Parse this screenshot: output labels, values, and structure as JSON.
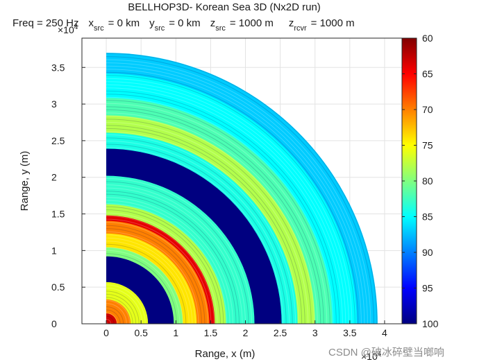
{
  "chart_data": {
    "type": "heatmap",
    "title": "BELLHOP3D- Korean Sea 3D (Nx2D run)",
    "subtitle": {
      "freq": "Freq = 250 Hz",
      "xsrc": "x",
      "xsrc_sub": "src",
      "xsrc_val": "= 0 km",
      "ysrc": "y",
      "ysrc_sub": "src",
      "ysrc_val": "= 0 km",
      "zsrc": "z",
      "zsrc_sub": "src",
      "zsrc_val": "= 1000 m",
      "zrcvr": "z",
      "zrcvr_sub": "rcvr",
      "zrcvr_val": "= 1000 m"
    },
    "xlabel": "Range, x (m)",
    "ylabel": "Range, y (m)",
    "xlim": [
      -0.35,
      4.25
    ],
    "ylim": [
      0,
      3.9
    ],
    "axis_multiplier": "×10",
    "axis_exponent": "4",
    "xticks": [
      0,
      0.5,
      1,
      1.5,
      2,
      2.5,
      3,
      3.5,
      4
    ],
    "xtick_labels": [
      "0",
      "0.5",
      "1",
      "1.5",
      "2",
      "2.5",
      "3",
      "3.5",
      "4"
    ],
    "yticks": [
      0,
      0.5,
      1,
      1.5,
      2,
      2.5,
      3,
      3.5
    ],
    "ytick_labels": [
      "0",
      "0.5",
      "1",
      "1.5",
      "2",
      "2.5",
      "3",
      "3.5"
    ],
    "grid": true,
    "colormap": "jet",
    "colorbar": {
      "range": [
        60,
        100
      ],
      "reversed": true,
      "ticks": [
        60,
        65,
        70,
        75,
        80,
        85,
        90,
        95,
        100
      ],
      "tick_labels": [
        "60",
        "65",
        "70",
        "75",
        "80",
        "85",
        "90",
        "95",
        "100"
      ]
    },
    "max_radius": 3.9,
    "shadow_zones": [
      [
        0.6,
        0.97
      ],
      [
        2.13,
        2.52
      ]
    ],
    "field_bands": [
      {
        "r": [
          0.0,
          0.15
        ],
        "tl": 63
      },
      {
        "r": [
          0.15,
          0.35
        ],
        "tl": 70
      },
      {
        "r": [
          0.35,
          0.6
        ],
        "tl": 76
      },
      {
        "r": [
          0.97,
          1.1
        ],
        "tl": 80
      },
      {
        "r": [
          1.1,
          1.3
        ],
        "tl": 74
      },
      {
        "r": [
          1.3,
          1.48
        ],
        "tl": 70
      },
      {
        "r": [
          1.48,
          1.56
        ],
        "tl": 64
      },
      {
        "r": [
          1.56,
          1.72
        ],
        "tl": 78
      },
      {
        "r": [
          1.72,
          2.13
        ],
        "tl": 83
      },
      {
        "r": [
          2.52,
          2.75
        ],
        "tl": 84
      },
      {
        "r": [
          2.75,
          3.0
        ],
        "tl": 78
      },
      {
        "r": [
          3.0,
          3.25
        ],
        "tl": 82
      },
      {
        "r": [
          3.25,
          3.6
        ],
        "tl": 85
      },
      {
        "r": [
          3.6,
          3.9
        ],
        "tl": 87
      }
    ],
    "watermark": "CSDN @破冰碎壁当啷响"
  }
}
